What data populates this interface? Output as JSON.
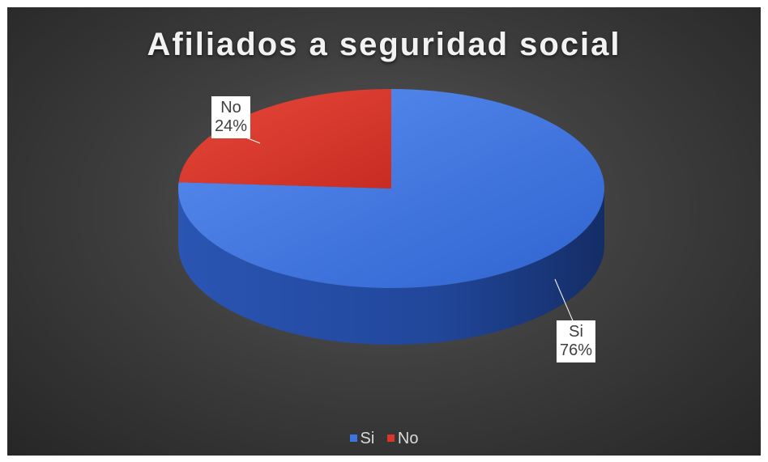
{
  "chart_data": {
    "type": "pie",
    "title": "Afiliados a seguridad social",
    "categories": [
      "Si",
      "No"
    ],
    "values": [
      76,
      24
    ],
    "value_labels": [
      "76%",
      "24%"
    ],
    "colors": [
      "#3d74e0",
      "#d9352a"
    ],
    "legend": [
      "Si",
      "No"
    ],
    "legend_position": "bottom",
    "style": "3d"
  }
}
